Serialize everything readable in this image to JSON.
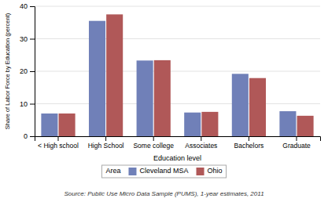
{
  "chart_data": {
    "type": "bar",
    "categories": [
      "< High school",
      "High School",
      "Some college",
      "Associates",
      "Bachelors",
      "Graduate"
    ],
    "series": [
      {
        "name": "Cleveland MSA",
        "color": "#7080b8",
        "values": [
          7.0,
          35.5,
          23.3,
          7.3,
          19.2,
          7.7
        ]
      },
      {
        "name": "Ohio",
        "color": "#b05858",
        "values": [
          7.0,
          37.5,
          23.4,
          7.5,
          17.9,
          6.3
        ]
      }
    ],
    "xlabel": "Education level",
    "ylabel": "Share of Labor Force by Education (percent)",
    "legend_title": "Area",
    "source": "Source: Public Use Micro Data Sample (PUMS), 1-year estimates, 2011",
    "ylim": [
      0,
      40
    ],
    "yticks": [
      0,
      10,
      20,
      30,
      40
    ],
    "grid": true,
    "legend": "bottom"
  }
}
